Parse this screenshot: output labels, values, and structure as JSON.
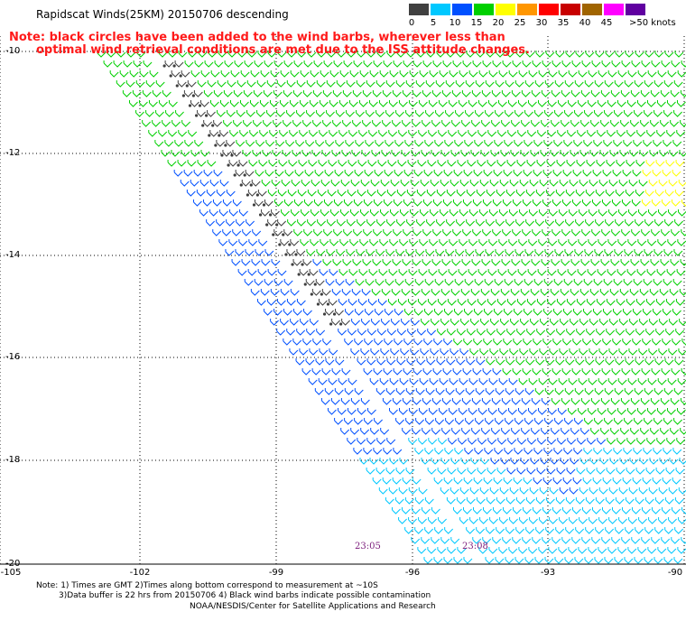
{
  "title": "Rapidscat Winds(25KM) 20150706 descending",
  "note": {
    "line1": "Note: black circles have been added to the wind barbs, wherever less than",
    "line2": "optimal wind retrieval conditions are met due to the ISS attitude changes."
  },
  "colorbar": {
    "labels": [
      "0",
      "5",
      "10",
      "15",
      "20",
      "25",
      "30",
      "35",
      "40",
      "45",
      ">50 knots"
    ],
    "colors": [
      "#404040",
      "#00c8ff",
      "#0050ff",
      "#00d000",
      "#ffff00",
      "#ff9600",
      "#ff0000",
      "#c80000",
      "#a06400",
      "#ff00ff",
      "#6000a0"
    ]
  },
  "map": {
    "lat_labels": [
      "-10",
      "-12",
      "-14",
      "-16",
      "-18",
      "-20"
    ],
    "lon_labels": [
      "-105",
      "-102",
      "-99",
      "-96",
      "-93",
      "-90"
    ],
    "pass_times": [
      "23:05",
      "23:08"
    ]
  },
  "footnotes": {
    "line1": "Note: 1) Times are GMT 2)Times along bottom correspond to measurement at ~10S",
    "line2": "3)Data buffer is 22 hrs from 20150706 4) Black wind barbs indicate possible contamination"
  },
  "credit": "NOAA/NESDIS/Center for Satellite Applications and Research"
}
